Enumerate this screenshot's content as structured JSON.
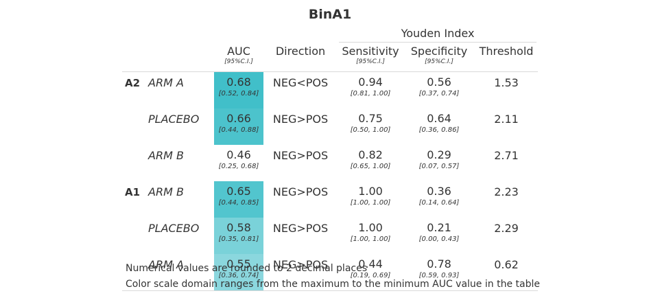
{
  "title": "BinA1",
  "spanner": "Youden Index",
  "columns": {
    "auc": {
      "label": "AUC",
      "sub": "[95%C.I.]"
    },
    "direction": {
      "label": "Direction"
    },
    "sensitivity": {
      "label": "Sensitivity",
      "sub": "[95%C.I.]"
    },
    "specificity": {
      "label": "Specificity",
      "sub": "[95%C.I.]"
    },
    "threshold": {
      "label": "Threshold"
    }
  },
  "colors": {
    "auc_high": "#41bfc9",
    "auc_low": "#bfe8ec"
  },
  "rows": [
    {
      "group": "A2",
      "arm": "ARM A",
      "auc": "0.68",
      "auc_ci": "[0.52, 0.84]",
      "auc_value": 0.68,
      "direction": "NEG<POS",
      "sens": "0.94",
      "sens_ci": "[0.81, 1.00]",
      "spec": "0.56",
      "spec_ci": "[0.37, 0.74]",
      "threshold": "1.53"
    },
    {
      "group": "",
      "arm": "PLACEBO",
      "auc": "0.66",
      "auc_ci": "[0.44, 0.88]",
      "auc_value": 0.66,
      "direction": "NEG>POS",
      "sens": "0.75",
      "sens_ci": "[0.50, 1.00]",
      "spec": "0.64",
      "spec_ci": "[0.36, 0.86]",
      "threshold": "2.11"
    },
    {
      "group": "",
      "arm": "ARM B",
      "auc": "0.46",
      "auc_ci": "[0.25, 0.68]",
      "auc_value": 0.46,
      "direction": "NEG>POS",
      "sens": "0.82",
      "sens_ci": "[0.65, 1.00]",
      "spec": "0.29",
      "spec_ci": "[0.07, 0.57]",
      "threshold": "2.71"
    },
    {
      "group": "A1",
      "arm": "ARM B",
      "auc": "0.65",
      "auc_ci": "[0.44, 0.85]",
      "auc_value": 0.65,
      "direction": "NEG>POS",
      "sens": "1.00",
      "sens_ci": "[1.00, 1.00]",
      "spec": "0.36",
      "spec_ci": "[0.14, 0.64]",
      "threshold": "2.23"
    },
    {
      "group": "",
      "arm": "PLACEBO",
      "auc": "0.58",
      "auc_ci": "[0.35, 0.81]",
      "auc_value": 0.58,
      "direction": "NEG>POS",
      "sens": "1.00",
      "sens_ci": "[1.00, 1.00]",
      "spec": "0.21",
      "spec_ci": "[0.00, 0.43]",
      "threshold": "2.29"
    },
    {
      "group": "",
      "arm": "ARM A",
      "auc": "0.55",
      "auc_ci": "[0.36, 0.74]",
      "auc_value": 0.55,
      "direction": "NEG>POS",
      "sens": "0.44",
      "sens_ci": "[0.19, 0.69]",
      "spec": "0.78",
      "spec_ci": "[0.59, 0.93]",
      "threshold": "0.62"
    }
  ],
  "footnotes": [
    "Numerical values are rounded to 2 decimal places",
    "Color scale domain ranges from the maximum to the minimum AUC value in the table"
  ]
}
